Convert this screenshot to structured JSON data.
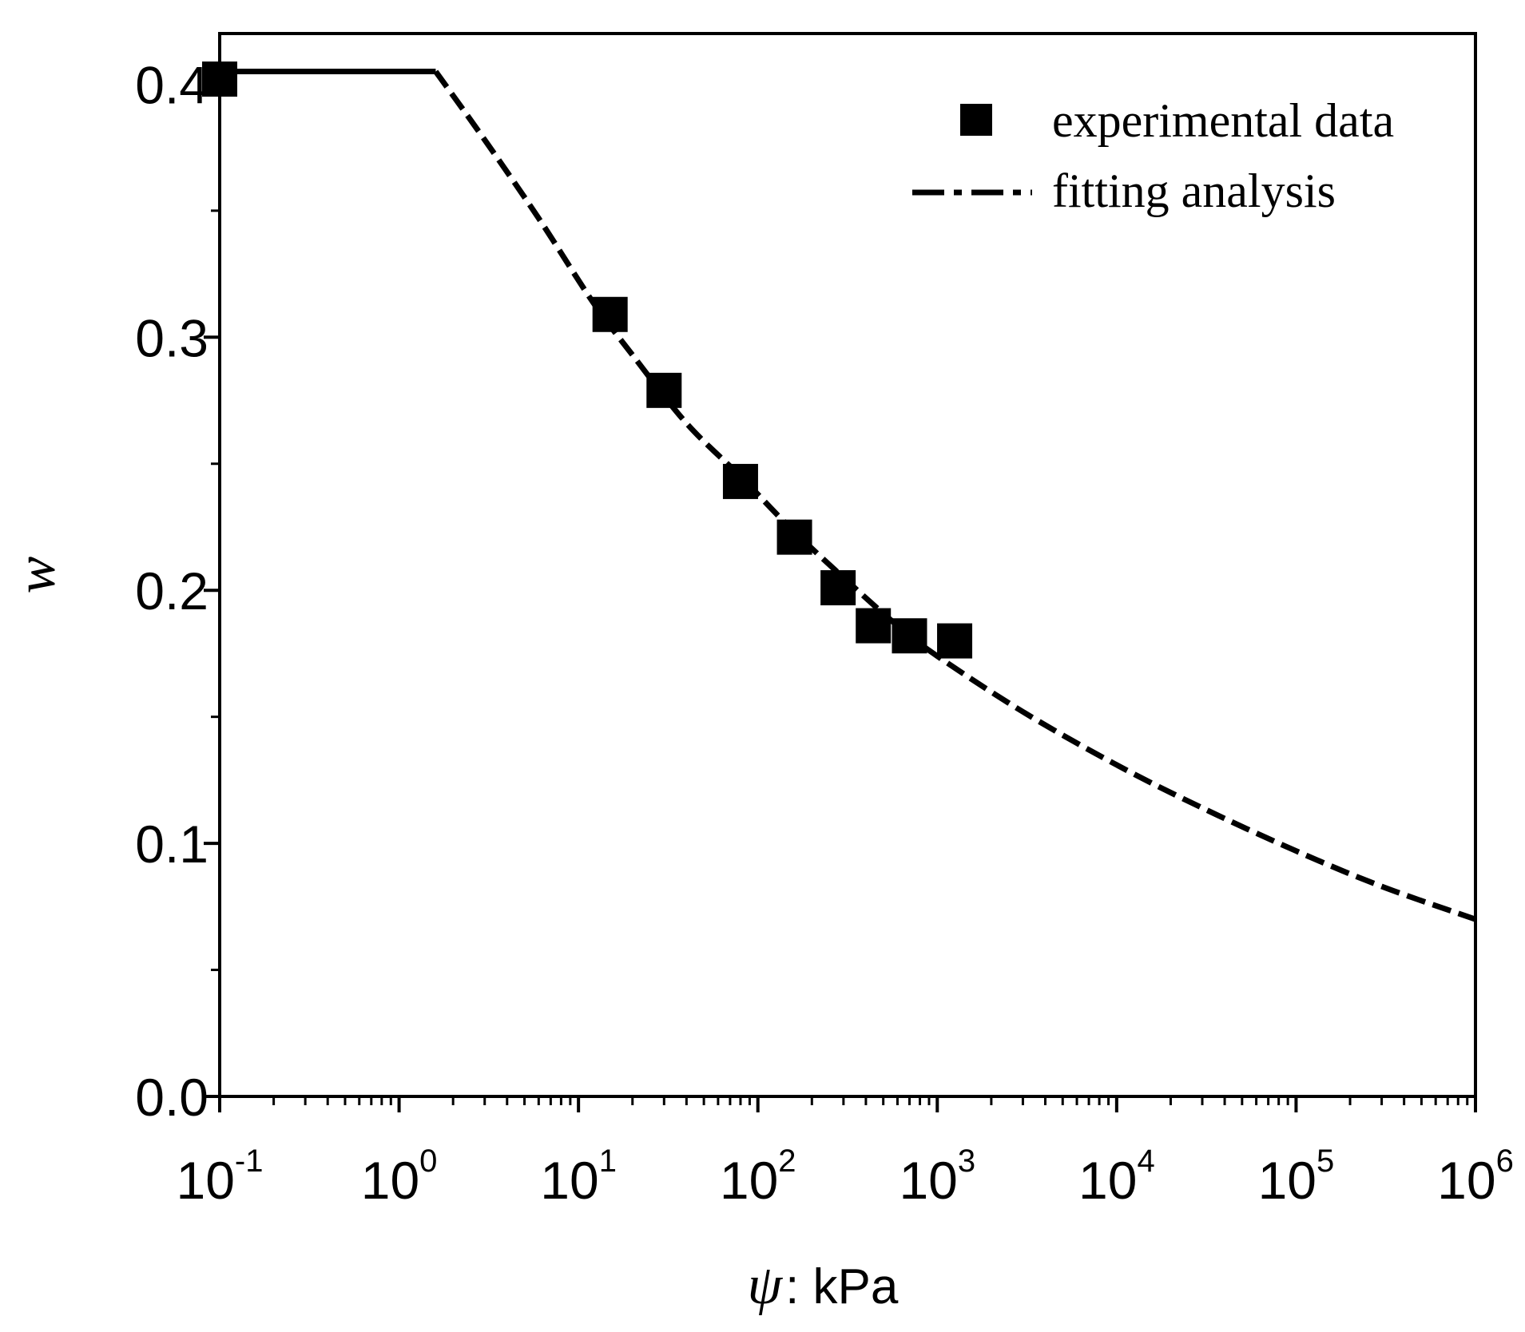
{
  "chart_data": {
    "type": "scatter",
    "title": "",
    "xlabel_symbol": "ψ",
    "xlabel_text": ": kPa",
    "ylabel": "w",
    "xscale": "log",
    "xlim": [
      0.1,
      1000000
    ],
    "ylim": [
      0,
      0.42
    ],
    "x_tick_labels": [
      {
        "base": "10",
        "exp": "-1"
      },
      {
        "base": "10",
        "exp": "0"
      },
      {
        "base": "10",
        "exp": "1"
      },
      {
        "base": "10",
        "exp": "2"
      },
      {
        "base": "10",
        "exp": "3"
      },
      {
        "base": "10",
        "exp": "4"
      },
      {
        "base": "10",
        "exp": "5"
      },
      {
        "base": "10",
        "exp": "6"
      }
    ],
    "x_tick_values": [
      0.1,
      1,
      10,
      100,
      1000,
      10000,
      100000,
      1000000
    ],
    "y_ticks": [
      0.0,
      0.1,
      0.2,
      0.3,
      0.4
    ],
    "y_tick_labels": [
      "0.0",
      "0.1",
      "0.2",
      "0.3",
      "0.4"
    ],
    "y_minor_ticks": [
      0.05,
      0.15,
      0.25,
      0.35
    ],
    "legend_position": "top-right",
    "series": [
      {
        "name": "experimental data",
        "kind": "scatter",
        "marker": "filled-square",
        "x": [
          0.1,
          15,
          30,
          80,
          160,
          280,
          440,
          700,
          1250
        ],
        "y": [
          0.402,
          0.309,
          0.279,
          0.243,
          0.221,
          0.201,
          0.186,
          0.182,
          0.18
        ]
      },
      {
        "name": "fitting analysis",
        "kind": "line",
        "style": "dash-dot",
        "x": [
          0.1,
          1.6,
          3,
          6,
          12,
          20,
          40,
          80,
          150,
          300,
          600,
          1000,
          3000,
          10000,
          30000,
          100000,
          300000,
          1000000
        ],
        "y": [
          0.405,
          0.405,
          0.378,
          0.347,
          0.314,
          0.293,
          0.266,
          0.245,
          0.225,
          0.205,
          0.186,
          0.174,
          0.152,
          0.131,
          0.114,
          0.097,
          0.083,
          0.07
        ]
      }
    ]
  }
}
